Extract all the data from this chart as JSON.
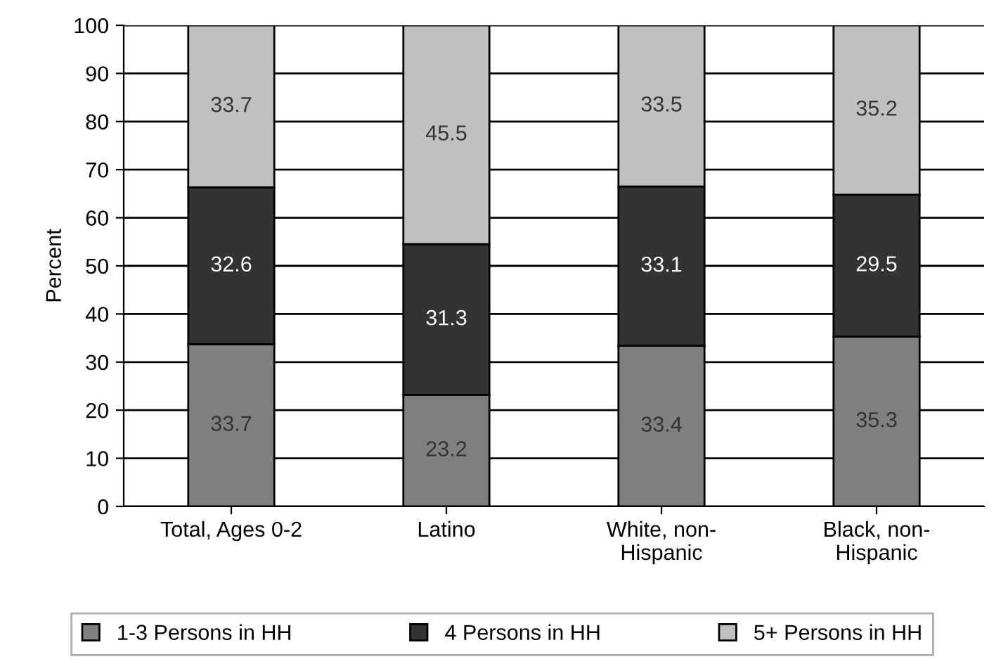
{
  "chart_data": {
    "type": "bar",
    "stacked": true,
    "ylabel": "Percent",
    "categories": [
      "Total, Ages 0-2",
      "Latino",
      "White, non-\nHispanic",
      "Black, non-\nHispanic"
    ],
    "series": [
      {
        "name": "1-3 Persons in HH",
        "color": "#808080",
        "values": [
          33.7,
          23.2,
          33.4,
          35.3
        ]
      },
      {
        "name": "4 Persons in HH",
        "color": "#333333",
        "values": [
          32.6,
          31.3,
          33.1,
          29.5
        ]
      },
      {
        "name": "5+ Persons in HH",
        "color": "#c0c0c0",
        "values": [
          33.7,
          45.5,
          33.5,
          35.2
        ]
      }
    ],
    "ylim": [
      0,
      100
    ],
    "yticks": [
      0,
      10,
      20,
      30,
      40,
      50,
      60,
      70,
      80,
      90,
      100
    ],
    "grid": "y",
    "legend": "bottom",
    "data_labels": true
  }
}
